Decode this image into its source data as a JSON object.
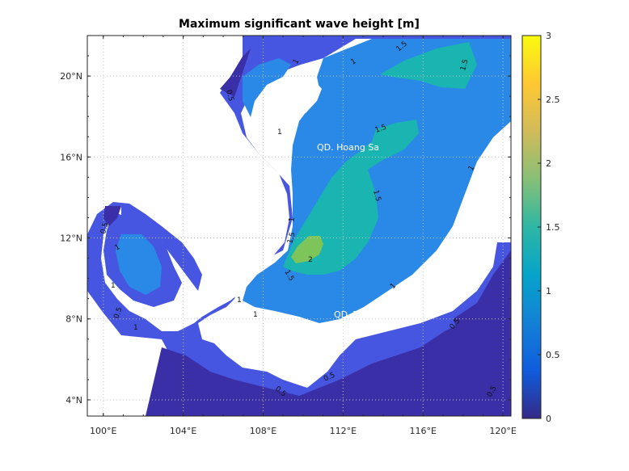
{
  "chart_data": {
    "type": "heatmap",
    "title": "Maximum significant wave height [m]",
    "xlabel": "",
    "ylabel": "",
    "x_ticks": [
      "100°E",
      "104°E",
      "108°E",
      "112°E",
      "116°E",
      "120°E"
    ],
    "y_ticks": [
      "4°N",
      "8°N",
      "12°N",
      "16°N",
      "20°N"
    ],
    "xlim": [
      99.2,
      120.4
    ],
    "ylim": [
      3.2,
      22
    ],
    "colorbar": {
      "ticks": [
        "0",
        "0.5",
        "1",
        "1.5",
        "2",
        "2.5",
        "3"
      ],
      "range": [
        0,
        3
      ],
      "colormap": "parula"
    },
    "contour_labels": [
      "1",
      "1",
      "1.5",
      "1.5",
      "0.5",
      "1",
      "1.5",
      "1.5",
      "1",
      "1",
      "1.5",
      "2",
      "1.5",
      "1",
      "0.5",
      "1",
      "1",
      "1",
      "0.5",
      "0.5",
      "0.5",
      "1",
      "0.5",
      "0.5",
      "1"
    ],
    "annotations": [
      "QD. Hoang Sa",
      "QD. Truong Sa"
    ],
    "grid": true
  },
  "colors": {
    "land": "#ffffff",
    "level_0": "#3a2fa6",
    "level_0_5": "#4756e0",
    "level_1": "#2a88e6",
    "level_1_5": "#1ab5b0",
    "level_2": "#7dc55a",
    "grid": "#c8c8c8"
  }
}
